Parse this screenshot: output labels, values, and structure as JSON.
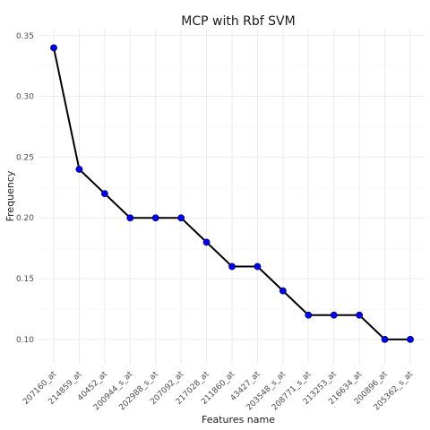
{
  "chart_data": {
    "type": "line",
    "title": "MCP with Rbf SVM",
    "xlabel": "Features name",
    "ylabel": "Frequency",
    "categories": [
      "207160_at",
      "214859_at",
      "40452_at",
      "200944_s_at",
      "202988_s_at",
      "207092_at",
      "217028_at",
      "211860_at",
      "43427_at",
      "203548_s_at",
      "208771_s_at",
      "213253_at",
      "216634_at",
      "200896_at",
      "205362_s_at"
    ],
    "values": [
      0.34,
      0.24,
      0.22,
      0.2,
      0.2,
      0.2,
      0.18,
      0.16,
      0.16,
      0.14,
      0.12,
      0.12,
      0.12,
      0.1,
      0.1
    ],
    "yticks": [
      "0.10",
      "0.15",
      "0.20",
      "0.25",
      "0.30",
      "0.35"
    ],
    "ylim": [
      0.08,
      0.355
    ],
    "grid": true,
    "point_color": "#0000ff",
    "line_color": "#000000"
  }
}
